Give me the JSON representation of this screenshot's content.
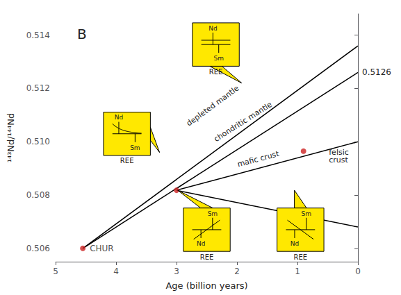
{
  "chart_data": {
    "type": "line",
    "title": "B",
    "xlabel": "Age (billion years)",
    "ylabel": "¹⁴³Nd/¹⁴⁴Nd",
    "xlim": [
      5,
      0
    ],
    "ylim": [
      0.5055,
      0.5148
    ],
    "xticks": [
      5,
      4,
      3,
      2,
      1,
      0
    ],
    "yticks": [
      0.506,
      0.508,
      {
        "value": 0.51,
        "label": "0.510"
      },
      0.512,
      0.514
    ],
    "grid": false,
    "series": [
      {
        "name": "depleted mantle",
        "type": "line",
        "color": "black",
        "x": [
          4.55,
          0
        ],
        "values": [
          0.506,
          0.5136
        ],
        "label_at": [
          2.4,
          0.51135
        ]
      },
      {
        "name": "chondritic mantle",
        "type": "line",
        "color": "black",
        "x": [
          4.55,
          0
        ],
        "values": [
          0.506,
          0.5126
        ],
        "label_at": [
          1.9,
          0.51075
        ]
      },
      {
        "name": "mafic crust",
        "type": "line",
        "color": "black",
        "x": [
          3.0,
          0
        ],
        "values": [
          0.50818,
          0.51
        ],
        "label_at": [
          1.65,
          0.50935
        ]
      },
      {
        "type": "line",
        "color": "black",
        "x": [
          3.0,
          0
        ],
        "values": [
          0.50818,
          0.5068
        ]
      },
      {
        "type": "scatter",
        "color": "#cc2222",
        "x": [
          4.55,
          3.0,
          0.9
        ],
        "values": [
          0.506,
          0.50818,
          0.50965
        ],
        "point_labels": [
          "CHUR",
          null,
          null
        ]
      }
    ],
    "annotations": [
      {
        "text": "0.5126",
        "y": 0.5126
      },
      {
        "text": "felsic\ncrust",
        "x": 0.48,
        "y": 0.50945
      }
    ],
    "insets": [
      {
        "type": "flat",
        "color": "#FFE800",
        "x": 2.35,
        "y": 0.51365,
        "tip": [
          1.92,
          0.5122
        ],
        "upper": "Nd",
        "lower": "Sm",
        "caption": "REE"
      },
      {
        "type": "decay",
        "color": "#FFE800",
        "x": 3.82,
        "y": 0.5103,
        "tip": [
          3.28,
          0.5096
        ],
        "upper": "Nd",
        "lower": "Sm",
        "caption": "REE"
      },
      {
        "type": "rising",
        "color": "#FFE800",
        "x": 2.5,
        "y": 0.5067,
        "tip": [
          2.98,
          0.50818
        ],
        "upper": "Sm",
        "lower": "Nd",
        "caption": "REE"
      },
      {
        "type": "falling",
        "color": "#FFE800",
        "x": 0.95,
        "y": 0.5067,
        "tip": [
          1.05,
          0.50818
        ],
        "upper": "Sm",
        "lower": "Nd",
        "caption": "REE"
      }
    ]
  }
}
